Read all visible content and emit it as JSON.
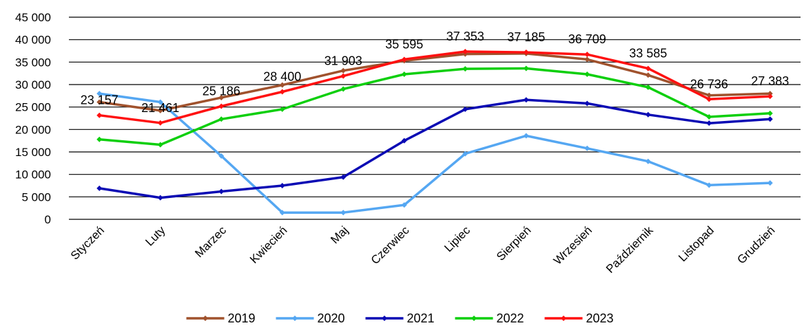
{
  "chart_data": {
    "type": "line",
    "title": "",
    "xlabel": "",
    "ylabel": "",
    "ylim": [
      0,
      45000
    ],
    "yticks": [
      0,
      5000,
      10000,
      15000,
      20000,
      25000,
      30000,
      35000,
      40000,
      45000
    ],
    "ytick_labels": [
      "0",
      "5 000",
      "10 000",
      "15 000",
      "20 000",
      "25 000",
      "30 000",
      "35 000",
      "40 000",
      "45 000"
    ],
    "grid": "horizontal",
    "legend_position": "bottom",
    "categories": [
      "Styczeń",
      "Luty",
      "Marzec",
      "Kwiecień",
      "Maj",
      "Czerwiec",
      "Lipiec",
      "Sierpień",
      "Wrzesień",
      "Październik",
      "Listopad",
      "Grudzień"
    ],
    "series": [
      {
        "name": "2019",
        "color": "#a0522d",
        "values": [
          26100,
          24200,
          27100,
          29900,
          33100,
          35300,
          36800,
          36900,
          35600,
          32100,
          27600,
          28000
        ]
      },
      {
        "name": "2020",
        "color": "#55a7f2",
        "values": [
          28000,
          26100,
          14100,
          1500,
          1500,
          3200,
          14600,
          18600,
          15800,
          12900,
          7600,
          8100
        ]
      },
      {
        "name": "2021",
        "color": "#0a0ab4",
        "values": [
          6900,
          4800,
          6200,
          7500,
          9400,
          17500,
          24500,
          26600,
          25800,
          23300,
          21400,
          22300
        ]
      },
      {
        "name": "2022",
        "color": "#0dcf0d",
        "values": [
          17800,
          16600,
          22300,
          24500,
          29000,
          32300,
          33500,
          33600,
          32300,
          29400,
          22800,
          23600
        ]
      },
      {
        "name": "2023",
        "color": "#ff1010",
        "values": [
          23157,
          21461,
          25186,
          28400,
          31903,
          35595,
          37353,
          37185,
          36709,
          33585,
          26736,
          27383
        ]
      }
    ],
    "data_labels": {
      "series": "2023",
      "texts": [
        "23 157",
        "21 461",
        "25 186",
        "28 400",
        "31 903",
        "35 595",
        "37 353",
        "37 185",
        "36 709",
        "33 585",
        "26 736",
        "27 383"
      ]
    }
  }
}
